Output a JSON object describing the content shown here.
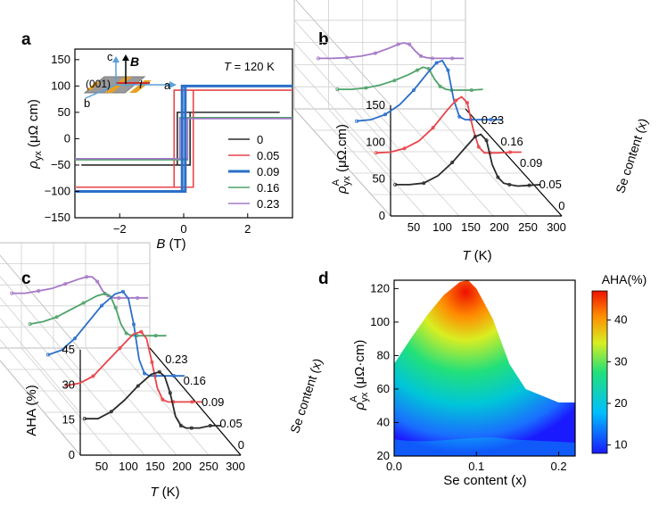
{
  "figure": {
    "panel_a_label": "a",
    "panel_b_label": "b",
    "panel_c_label": "c",
    "panel_d_label": "d"
  },
  "chart_data": [
    {
      "panel": "a",
      "type": "line",
      "title": "",
      "annotation": "T = 120 K",
      "annotation_T": "T",
      "annotation_rest": " = 120 K",
      "xlabel_var": "B",
      "xlabel_unit": "(T)",
      "ylabel_var": "ρ",
      "ylabel_sub": "yx",
      "ylabel_unit": "(μΩ cm)",
      "xlim": [
        -3.4,
        3.4
      ],
      "ylim": [
        -150,
        170
      ],
      "xticks": [
        -2,
        0,
        2
      ],
      "yticks": [
        -150,
        -100,
        -50,
        0,
        50,
        100,
        150
      ],
      "inset": {
        "c": "c",
        "B": "B",
        "plane": "(001)",
        "I": "I",
        "a": "a",
        "b": "b"
      },
      "legend_position": "right-center",
      "series": [
        {
          "name": "0",
          "color": "#2b2b2b",
          "width": 1.6,
          "coercive": 0.2,
          "sat": 50
        },
        {
          "name": "0.05",
          "color": "#e8454a",
          "width": 1.6,
          "coercive": 0.3,
          "sat": 92
        },
        {
          "name": "0.09",
          "color": "#2b6fc8",
          "width": 3.0,
          "coercive": 0.05,
          "sat": 100
        },
        {
          "name": "0.16",
          "color": "#4ea36a",
          "width": 1.6,
          "coercive": 0.12,
          "sat": 40
        },
        {
          "name": "0.23",
          "color": "#a678c8",
          "width": 1.6,
          "coercive": 0.12,
          "sat": 38
        }
      ]
    },
    {
      "panel": "b",
      "type": "line",
      "projection": "3d-waterfall",
      "xlabel_var": "T",
      "xlabel_unit": "(K)",
      "ylabel_var": "ρ",
      "ylabel_sup": "A",
      "ylabel_sub": "yx",
      "ylabel_unit": "(μΩ.cm)",
      "zlabel": "Se content (x)",
      "xlim": [
        0,
        300
      ],
      "ylim": [
        0,
        150
      ],
      "xticks": [
        50,
        100,
        150,
        200,
        250,
        300
      ],
      "yticks": [
        0,
        50,
        100,
        150
      ],
      "depth_ticks": [
        "0",
        "0.05",
        "0.09",
        "0.16",
        "0.23"
      ],
      "series": [
        {
          "name": "0",
          "color": "#2b2b2b",
          "T": [
            25,
            50,
            75,
            100,
            125,
            150,
            165,
            175,
            185,
            195,
            205,
            215,
            225,
            240,
            260,
            280
          ],
          "values": [
            28,
            28,
            30,
            40,
            58,
            80,
            93,
            96,
            88,
            55,
            38,
            30,
            28,
            26,
            27,
            28
          ]
        },
        {
          "name": "0.05",
          "color": "#e8454a",
          "T": [
            25,
            50,
            75,
            100,
            125,
            150,
            165,
            175,
            185,
            195,
            205,
            215,
            225,
            240,
            260,
            280
          ],
          "values": [
            42,
            43,
            48,
            58,
            76,
            100,
            113,
            118,
            110,
            75,
            50,
            42,
            42,
            42,
            43,
            43
          ]
        },
        {
          "name": "0.09",
          "color": "#2b6fc8",
          "T": [
            25,
            50,
            75,
            100,
            125,
            150,
            165,
            175,
            185,
            195,
            205,
            215,
            225,
            240,
            260,
            280
          ],
          "values": [
            56,
            58,
            65,
            78,
            98,
            122,
            135,
            138,
            125,
            85,
            62,
            58,
            58,
            58,
            58,
            58
          ]
        },
        {
          "name": "0.16",
          "color": "#4ea36a",
          "T": [
            25,
            50,
            75,
            100,
            125,
            150,
            165,
            175,
            185,
            195,
            205,
            215,
            225,
            240,
            260,
            280
          ],
          "values": [
            70,
            70,
            72,
            76,
            82,
            90,
            96,
            100,
            98,
            84,
            74,
            70,
            69,
            69,
            69,
            70
          ]
        },
        {
          "name": "0.23",
          "color": "#a678c8",
          "T": [
            25,
            50,
            75,
            100,
            125,
            150,
            165,
            175,
            185,
            195,
            205,
            215,
            225,
            240,
            260,
            280
          ],
          "values": [
            83,
            83,
            84,
            86,
            90,
            97,
            102,
            104,
            102,
            93,
            86,
            84,
            83,
            83,
            83,
            83
          ]
        }
      ]
    },
    {
      "panel": "c",
      "type": "line",
      "projection": "3d-waterfall",
      "xlabel_var": "T",
      "xlabel_unit": "(K)",
      "ylabel": "AHA (%)",
      "zlabel": "Se content (x)",
      "xlim": [
        0,
        300
      ],
      "ylim": [
        0,
        45
      ],
      "xticks": [
        50,
        100,
        150,
        200,
        250,
        300
      ],
      "yticks": [
        0,
        15,
        30,
        45
      ],
      "depth_ticks": [
        "0",
        "0.05",
        "0.09",
        "0.16",
        "0.23"
      ],
      "series": [
        {
          "name": "0",
          "color": "#2b2b2b",
          "T": [
            25,
            50,
            75,
            100,
            125,
            150,
            165,
            175,
            185,
            195,
            205,
            215,
            225,
            240,
            260,
            280
          ],
          "values": [
            11,
            11,
            14,
            19,
            25,
            30,
            31,
            29,
            22,
            12,
            8,
            7,
            7,
            7,
            8,
            8
          ]
        },
        {
          "name": "0.05",
          "color": "#e8454a",
          "T": [
            25,
            50,
            75,
            100,
            125,
            150,
            165,
            175,
            185,
            195,
            205,
            215,
            225,
            240,
            260,
            280
          ],
          "values": [
            16,
            17,
            20,
            26,
            32,
            38,
            39,
            36,
            26,
            15,
            10,
            9,
            9,
            9,
            9,
            9
          ]
        },
        {
          "name": "0.09",
          "color": "#2b6fc8",
          "T": [
            25,
            50,
            75,
            100,
            125,
            150,
            165,
            175,
            185,
            195,
            205,
            215,
            225,
            240,
            260,
            280
          ],
          "values": [
            20,
            22,
            27,
            34,
            41,
            46,
            47,
            44,
            33,
            18,
            12,
            11,
            11,
            11,
            11,
            11
          ]
        },
        {
          "name": "0.16",
          "color": "#4ea36a",
          "T": [
            25,
            50,
            75,
            100,
            125,
            150,
            165,
            175,
            185,
            195,
            205,
            215,
            225,
            240,
            260,
            280
          ],
          "values": [
            24,
            25,
            27,
            30,
            33,
            36,
            37,
            36,
            31,
            24,
            20,
            19,
            19,
            19,
            19,
            19
          ]
        },
        {
          "name": "0.23",
          "color": "#a678c8",
          "T": [
            25,
            50,
            75,
            100,
            125,
            150,
            165,
            175,
            185,
            195,
            205,
            215,
            225,
            240,
            260,
            280
          ],
          "values": [
            28,
            28,
            29,
            30,
            32,
            34,
            35,
            35,
            33,
            29,
            27,
            26,
            26,
            26,
            26,
            26
          ]
        }
      ]
    },
    {
      "panel": "d",
      "type": "heatmap",
      "xlabel": "Se content (x)",
      "ylabel_var": "ρ",
      "ylabel_sup": "A",
      "ylabel_sub": "yx",
      "ylabel_unit": "(μΩ·cm)",
      "colorbar_label": "AHA(%)",
      "xlim": [
        0,
        0.22
      ],
      "ylim": [
        20,
        125
      ],
      "xticks": [
        "0.0",
        "0.1",
        "0.2"
      ],
      "yticks": [
        20,
        40,
        60,
        80,
        100,
        120
      ],
      "colorbar_range": [
        8,
        47
      ],
      "colorbar_ticks": [
        10,
        20,
        30,
        40
      ],
      "upper_boundary": [
        [
          0,
          75
        ],
        [
          0.02,
          90
        ],
        [
          0.04,
          104
        ],
        [
          0.06,
          116
        ],
        [
          0.08,
          124
        ],
        [
          0.09,
          125
        ],
        [
          0.1,
          120
        ],
        [
          0.12,
          102
        ],
        [
          0.14,
          75
        ],
        [
          0.16,
          60
        ],
        [
          0.18,
          56
        ],
        [
          0.2,
          52
        ],
        [
          0.22,
          52
        ]
      ],
      "peak": {
        "x": 0.087,
        "y": 118,
        "value": 46
      }
    }
  ]
}
